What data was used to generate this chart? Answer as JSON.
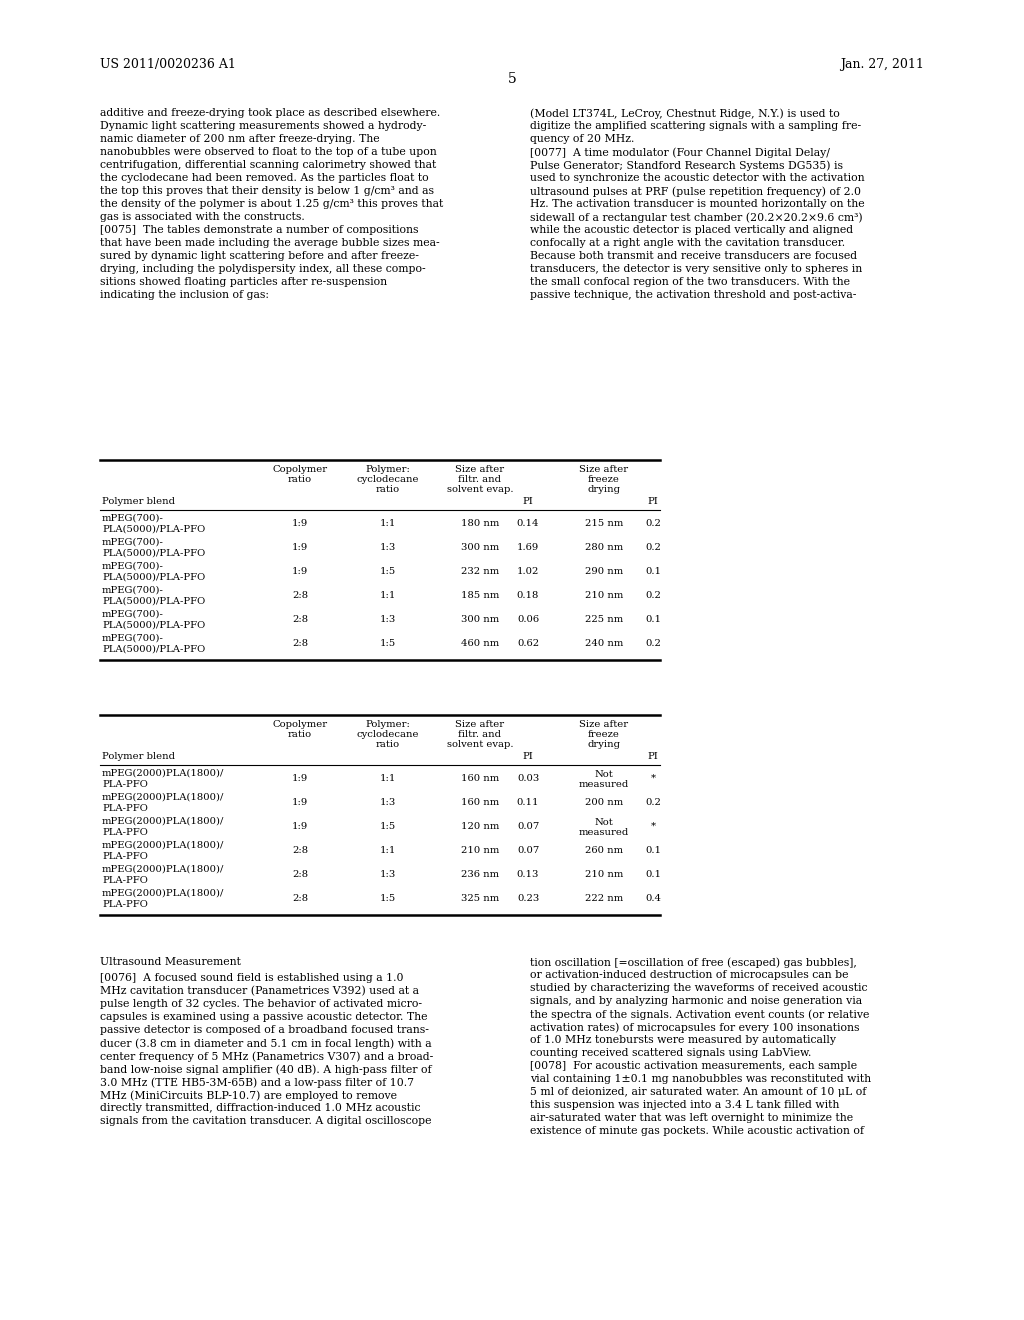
{
  "page_header_left": "US 2011/0020236 A1",
  "page_header_right": "Jan. 27, 2011",
  "page_number": "5",
  "bg_color": "#ffffff",
  "text_color": "#000000",
  "left_col_text": [
    "additive and freeze-drying took place as described elsewhere.",
    "Dynamic light scattering measurements showed a hydrody-",
    "namic diameter of 200 nm after freeze-drying. The",
    "nanobubbles were observed to float to the top of a tube upon",
    "centrifugation, differential scanning calorimetry showed that",
    "the cyclodecane had been removed. As the particles float to",
    "the top this proves that their density is below 1 g/cm³ and as",
    "the density of the polymer is about 1.25 g/cm³ this proves that",
    "gas is associated with the constructs.",
    "[0075]  The tables demonstrate a number of compositions",
    "that have been made including the average bubble sizes mea-",
    "sured by dynamic light scattering before and after freeze-",
    "drying, including the polydispersity index, all these compo-",
    "sitions showed floating particles after re-suspension",
    "indicating the inclusion of gas:"
  ],
  "right_col_text": [
    "(Model LT374L, LeCroy, Chestnut Ridge, N.Y.) is used to",
    "digitize the amplified scattering signals with a sampling fre-",
    "quency of 20 MHz.",
    "[0077]  A time modulator (Four Channel Digital Delay/",
    "Pulse Generator; Standford Research Systems DG535) is",
    "used to synchronize the acoustic detector with the activation",
    "ultrasound pulses at PRF (pulse repetition frequency) of 2.0",
    "Hz. The activation transducer is mounted horizontally on the",
    "sidewall of a rectangular test chamber (20.2×20.2×9.6 cm³)",
    "while the acoustic detector is placed vertically and aligned",
    "confocally at a right angle with the cavitation transducer.",
    "Because both transmit and receive transducers are focused",
    "transducers, the detector is very sensitive only to spheres in",
    "the small confocal region of the two transducers. With the",
    "passive technique, the activation threshold and post-activa-"
  ],
  "table1_rows": [
    [
      "mPEG(700)-",
      "PLA(5000)/PLA-PFO",
      "1:9",
      "1:1",
      "180 nm",
      "0.14",
      "215 nm",
      "0.2"
    ],
    [
      "mPEG(700)-",
      "PLA(5000)/PLA-PFO",
      "1:9",
      "1:3",
      "300 nm",
      "1.69",
      "280 nm",
      "0.2"
    ],
    [
      "mPEG(700)-",
      "PLA(5000)/PLA-PFO",
      "1:9",
      "1:5",
      "232 nm",
      "1.02",
      "290 nm",
      "0.1"
    ],
    [
      "mPEG(700)-",
      "PLA(5000)/PLA-PFO",
      "2:8",
      "1:1",
      "185 nm",
      "0.18",
      "210 nm",
      "0.2"
    ],
    [
      "mPEG(700)-",
      "PLA(5000)/PLA-PFO",
      "2:8",
      "1:3",
      "300 nm",
      "0.06",
      "225 nm",
      "0.1"
    ],
    [
      "mPEG(700)-",
      "PLA(5000)/PLA-PFO",
      "2:8",
      "1:5",
      "460 nm",
      "0.62",
      "240 nm",
      "0.2"
    ]
  ],
  "table2_rows": [
    [
      "mPEG(2000)PLA(1800)/",
      "PLA-PFO",
      "1:9",
      "1:1",
      "160 nm",
      "0.03",
      "Not measured",
      "*"
    ],
    [
      "mPEG(2000)PLA(1800)/",
      "PLA-PFO",
      "1:9",
      "1:3",
      "160 nm",
      "0.11",
      "200 nm",
      "0.2"
    ],
    [
      "mPEG(2000)PLA(1800)/",
      "PLA-PFO",
      "1:9",
      "1:5",
      "120 nm",
      "0.07",
      "Not measured",
      "*"
    ],
    [
      "mPEG(2000)PLA(1800)/",
      "PLA-PFO",
      "2:8",
      "1:1",
      "210 nm",
      "0.07",
      "260 nm",
      "0.1"
    ],
    [
      "mPEG(2000)PLA(1800)/",
      "PLA-PFO",
      "2:8",
      "1:3",
      "236 nm",
      "0.13",
      "210 nm",
      "0.1"
    ],
    [
      "mPEG(2000)PLA(1800)/",
      "PLA-PFO",
      "2:8",
      "1:5",
      "325 nm",
      "0.23",
      "222 nm",
      "0.4"
    ]
  ],
  "bottom_left_heading": "Ultrasound Measurement",
  "bottom_left_text": [
    "[0076]  A focused sound field is established using a 1.0",
    "MHz cavitation transducer (Panametrices V392) used at a",
    "pulse length of 32 cycles. The behavior of activated micro-",
    "capsules is examined using a passive acoustic detector. The",
    "passive detector is composed of a broadband focused trans-",
    "ducer (3.8 cm in diameter and 5.1 cm in focal length) with a",
    "center frequency of 5 MHz (Panametrics V307) and a broad-",
    "band low-noise signal amplifier (40 dB). A high-pass filter of",
    "3.0 MHz (TTE HB5-3M-65B) and a low-pass filter of 10.7",
    "MHz (MiniCircuits BLP-10.7) are employed to remove",
    "directly transmitted, diffraction-induced 1.0 MHz acoustic",
    "signals from the cavitation transducer. A digital oscilloscope"
  ],
  "bottom_right_text": [
    "tion oscillation [=oscillation of free (escaped) gas bubbles],",
    "or activation-induced destruction of microcapsules can be",
    "studied by characterizing the waveforms of received acoustic",
    "signals, and by analyzing harmonic and noise generation via",
    "the spectra of the signals. Activation event counts (or relative",
    "activation rates) of microcapsules for every 100 insonations",
    "of 1.0 MHz tonebursts were measured by automatically",
    "counting received scattered signals using LabView.",
    "[0078]  For acoustic activation measurements, each sample",
    "vial containing 1±0.1 mg nanobubbles was reconstituted with",
    "5 ml of deionized, air saturated water. An amount of 10 μL of",
    "this suspension was injected into a 3.4 L tank filled with",
    "air-saturated water that was left overnight to minimize the",
    "existence of minute gas pockets. While acoustic activation of"
  ]
}
